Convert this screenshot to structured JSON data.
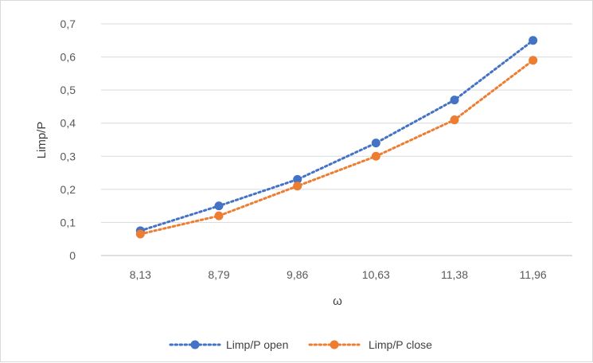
{
  "chart_data": {
    "type": "line",
    "title": "",
    "xlabel": "ω",
    "ylabel": "Limp/P",
    "categories": [
      "8,13",
      "8,79",
      "9,86",
      "10,63",
      "11,38",
      "11,96"
    ],
    "ylim": [
      0,
      0.7
    ],
    "yticks": [
      0,
      0.1,
      0.2,
      0.3,
      0.4,
      0.5,
      0.6,
      0.7
    ],
    "ytick_labels": [
      "0",
      "0,1",
      "0,2",
      "0,3",
      "0,4",
      "0,5",
      "0,6",
      "0,7"
    ],
    "grid": true,
    "legend_position": "bottom",
    "series": [
      {
        "name": "Limp/P open",
        "values": [
          0.075,
          0.15,
          0.23,
          0.34,
          0.47,
          0.65
        ],
        "color": "#4472c4",
        "line_style": "dotted",
        "marker": "circle"
      },
      {
        "name": "Limp/P close",
        "values": [
          0.065,
          0.12,
          0.21,
          0.3,
          0.41,
          0.59
        ],
        "color": "#ed7d31",
        "line_style": "dotted",
        "marker": "circle"
      }
    ]
  }
}
